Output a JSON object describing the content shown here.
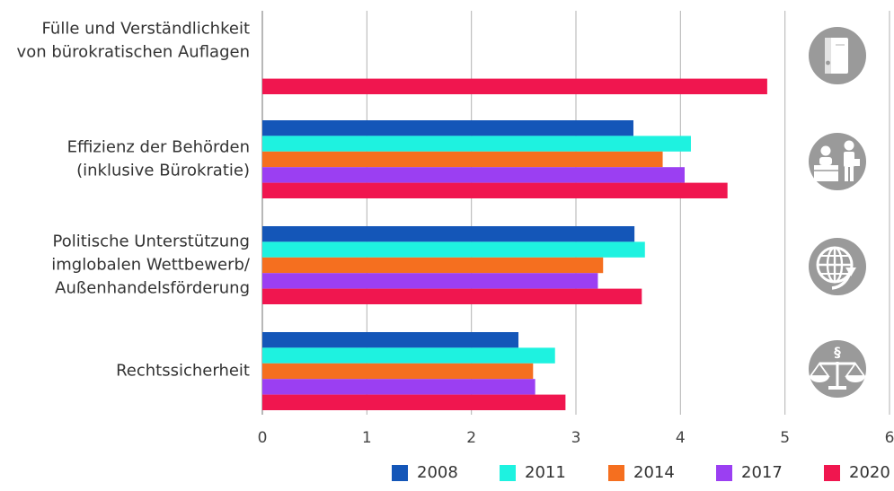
{
  "chart_data": {
    "type": "bar",
    "orientation": "horizontal",
    "categories": [
      [
        "Fülle und Verständlichkeit",
        "von bürokratischen Auflagen"
      ],
      [
        "Effizienz der Behörden",
        "(inklusive Bürokratie)"
      ],
      [
        "Politische Unterstützung",
        "imglobalen Wettbewerb/",
        "Außenhandelsförderung"
      ],
      [
        "Rechtssicherheit"
      ]
    ],
    "category_icons": [
      "binder-icon",
      "office-desk-icon",
      "globe-icon",
      "scales-of-justice-icon"
    ],
    "series": [
      {
        "name": "2008",
        "color": "#1456b8",
        "values": [
          null,
          3.55,
          3.56,
          2.45
        ]
      },
      {
        "name": "2011",
        "color": "#1ef2e0",
        "values": [
          null,
          4.1,
          3.66,
          2.8
        ]
      },
      {
        "name": "2014",
        "color": "#f56f1f",
        "values": [
          null,
          3.83,
          3.26,
          2.59
        ]
      },
      {
        "name": "2017",
        "color": "#9b3ff2",
        "values": [
          null,
          4.04,
          3.21,
          2.61
        ]
      },
      {
        "name": "2020",
        "color": "#f0164f",
        "values": [
          4.83,
          4.45,
          3.63,
          2.9
        ]
      }
    ],
    "xlim": [
      0,
      6
    ],
    "xticks": [
      "0",
      "1",
      "2",
      "3",
      "4",
      "5",
      "6"
    ],
    "grid": true,
    "legend_position": "bottom-right",
    "title": "",
    "xlabel": "",
    "ylabel": ""
  }
}
